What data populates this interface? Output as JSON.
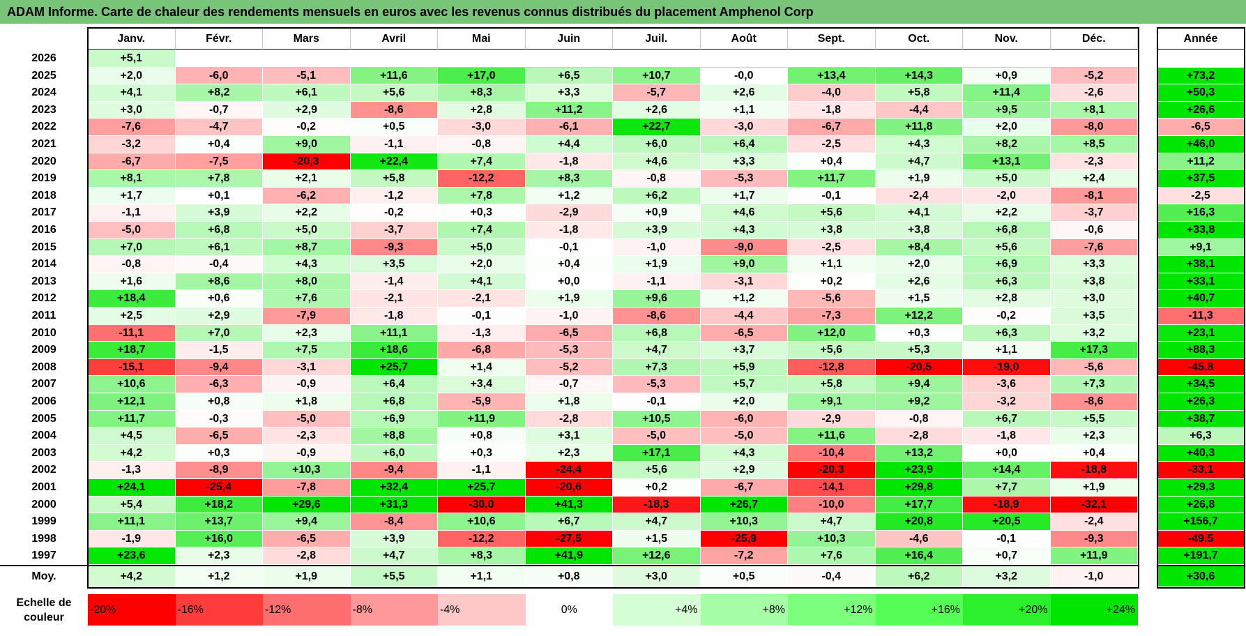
{
  "title": "ADAM Informe. Carte de chaleur des rendements mensuels en euros avec les revenus connus distribués du placement Amphenol Corp",
  "chart_data": {
    "type": "heatmap",
    "columns": [
      "Janv.",
      "Févr.",
      "Mars",
      "Avril",
      "Mai",
      "Juin",
      "Juil.",
      "Août",
      "Sept.",
      "Oct.",
      "Nov.",
      "Déc."
    ],
    "year_column": "Année",
    "rows": [
      {
        "year": "2026",
        "values": [
          "+5,1",
          "",
          "",
          "",
          "",
          "",
          "",
          "",
          "",
          "",
          "",
          ""
        ],
        "annual": ""
      },
      {
        "year": "2025",
        "values": [
          "+2,0",
          "-6,0",
          "-5,1",
          "+11,6",
          "+17,0",
          "+6,5",
          "+10,7",
          "-0,0",
          "+13,4",
          "+14,3",
          "+0,9",
          "-5,2"
        ],
        "annual": "+73,2"
      },
      {
        "year": "2024",
        "values": [
          "+4,1",
          "+8,2",
          "+6,1",
          "+5,6",
          "+8,3",
          "+3,3",
          "-5,7",
          "+2,6",
          "-4,0",
          "+5,8",
          "+11,4",
          "-2,6"
        ],
        "annual": "+50,3"
      },
      {
        "year": "2023",
        "values": [
          "+3,0",
          "-0,7",
          "+2,9",
          "-8,6",
          "+2,8",
          "+11,2",
          "+2,6",
          "+1,1",
          "-1,8",
          "-4,4",
          "+9,5",
          "+8,1"
        ],
        "annual": "+26,6"
      },
      {
        "year": "2022",
        "values": [
          "-7,6",
          "-4,7",
          "-0,2",
          "+0,5",
          "-3,0",
          "-6,1",
          "+22,7",
          "-3,0",
          "-6,7",
          "+11,8",
          "+2,0",
          "-8,0"
        ],
        "annual": "-6,5"
      },
      {
        "year": "2021",
        "values": [
          "-3,2",
          "+0,4",
          "+9,0",
          "-1,1",
          "-0,8",
          "+4,4",
          "+6,0",
          "+6,4",
          "-2,5",
          "+4,3",
          "+8,2",
          "+8,5"
        ],
        "annual": "+46,0"
      },
      {
        "year": "2020",
        "values": [
          "-6,7",
          "-7,5",
          "-20,3",
          "+22,4",
          "+7,4",
          "-1,8",
          "+4,6",
          "+3,3",
          "+0,4",
          "+4,7",
          "+13,1",
          "-2,3"
        ],
        "annual": "+11,2"
      },
      {
        "year": "2019",
        "values": [
          "+8,1",
          "+7,8",
          "+2,1",
          "+5,8",
          "-12,2",
          "+8,3",
          "-0,8",
          "-5,3",
          "+11,7",
          "+1,9",
          "+5,0",
          "+2,4"
        ],
        "annual": "+37,5"
      },
      {
        "year": "2018",
        "values": [
          "+1,7",
          "+0,1",
          "-6,2",
          "-1,2",
          "+7,8",
          "+1,2",
          "+6,2",
          "+1,7",
          "-0,1",
          "-2,4",
          "-2,0",
          "-8,1"
        ],
        "annual": "-2,5"
      },
      {
        "year": "2017",
        "values": [
          "-1,1",
          "+3,9",
          "+2,2",
          "-0,2",
          "+0,3",
          "-2,9",
          "+0,9",
          "+4,6",
          "+5,6",
          "+4,1",
          "+2,2",
          "-3,7"
        ],
        "annual": "+16,3"
      },
      {
        "year": "2016",
        "values": [
          "-5,0",
          "+6,8",
          "+5,0",
          "-3,7",
          "+7,4",
          "-1,8",
          "+3,9",
          "+4,3",
          "+3,8",
          "+3,8",
          "+6,8",
          "-0,6"
        ],
        "annual": "+33,8"
      },
      {
        "year": "2015",
        "values": [
          "+7,0",
          "+6,1",
          "+8,7",
          "-9,3",
          "+5,0",
          "-0,1",
          "-1,0",
          "-9,0",
          "-2,5",
          "+8,4",
          "+5,6",
          "-7,6"
        ],
        "annual": "+9,1"
      },
      {
        "year": "2014",
        "values": [
          "-0,8",
          "-0,4",
          "+4,3",
          "+3,5",
          "+2,0",
          "+0,4",
          "+1,9",
          "+9,0",
          "+1,1",
          "+2,0",
          "+6,9",
          "+3,3"
        ],
        "annual": "+38,1"
      },
      {
        "year": "2013",
        "values": [
          "+1,6",
          "+8,6",
          "+8,0",
          "-1,4",
          "+4,1",
          "+0,0",
          "-1,1",
          "-3,1",
          "+0,2",
          "+2,6",
          "+6,3",
          "+3,8"
        ],
        "annual": "+33,1"
      },
      {
        "year": "2012",
        "values": [
          "+18,4",
          "+0,6",
          "+7,6",
          "-2,1",
          "-2,1",
          "+1,9",
          "+9,6",
          "+1,2",
          "-5,6",
          "+1,5",
          "+2,8",
          "+3,0"
        ],
        "annual": "+40,7"
      },
      {
        "year": "2011",
        "values": [
          "+2,5",
          "+2,9",
          "-7,9",
          "-1,8",
          "-0,1",
          "-1,0",
          "-8,6",
          "-4,4",
          "-7,3",
          "+12,2",
          "-0,2",
          "+3,5"
        ],
        "annual": "-11,3"
      },
      {
        "year": "2010",
        "values": [
          "-11,1",
          "+7,0",
          "+2,3",
          "+11,1",
          "-1,3",
          "-6,5",
          "+6,8",
          "-6,5",
          "+12,0",
          "+0,3",
          "+6,3",
          "+3,2"
        ],
        "annual": "+23,1"
      },
      {
        "year": "2009",
        "values": [
          "+18,7",
          "-1,5",
          "+7,5",
          "+18,6",
          "-6,8",
          "-5,3",
          "+4,7",
          "+3,7",
          "+5,6",
          "+5,3",
          "+1,1",
          "+17,3"
        ],
        "annual": "+88,3"
      },
      {
        "year": "2008",
        "values": [
          "-15,1",
          "-9,4",
          "-3,1",
          "+25,7",
          "+1,4",
          "-5,2",
          "+7,3",
          "+5,9",
          "-12,8",
          "-20,5",
          "-19,0",
          "-5,6"
        ],
        "annual": "-45,8"
      },
      {
        "year": "2007",
        "values": [
          "+10,6",
          "-6,3",
          "-0,9",
          "+6,4",
          "+3,4",
          "-0,7",
          "-5,3",
          "+5,7",
          "+5,8",
          "+9,4",
          "-3,6",
          "+7,3"
        ],
        "annual": "+34,5"
      },
      {
        "year": "2006",
        "values": [
          "+12,1",
          "+0,8",
          "+1,8",
          "+6,8",
          "-5,9",
          "+1,8",
          "-0,1",
          "+2,0",
          "+9,1",
          "+9,2",
          "-3,2",
          "-8,6"
        ],
        "annual": "+26,3"
      },
      {
        "year": "2005",
        "values": [
          "+11,7",
          "-0,3",
          "-5,0",
          "+6,9",
          "+11,9",
          "-2,8",
          "+10,5",
          "-6,0",
          "-2,9",
          "-0,8",
          "+6,7",
          "+5,5"
        ],
        "annual": "+38,7"
      },
      {
        "year": "2004",
        "values": [
          "+4,5",
          "-6,5",
          "-2,3",
          "+8,8",
          "+0,8",
          "+3,1",
          "-5,0",
          "-5,0",
          "+11,6",
          "-2,8",
          "-1,8",
          "+2,3"
        ],
        "annual": "+6,3"
      },
      {
        "year": "2003",
        "values": [
          "+4,2",
          "+0,3",
          "-0,9",
          "+6,0",
          "+0,3",
          "+2,3",
          "+17,1",
          "+4,3",
          "-10,4",
          "+13,2",
          "+0,0",
          "+0,4"
        ],
        "annual": "+40,3"
      },
      {
        "year": "2002",
        "values": [
          "-1,3",
          "-8,9",
          "+10,3",
          "-9,4",
          "-1,1",
          "-24,4",
          "+5,6",
          "+2,9",
          "-20,3",
          "+23,9",
          "+14,4",
          "-18,8"
        ],
        "annual": "-33,1"
      },
      {
        "year": "2001",
        "values": [
          "+24,1",
          "-25,4",
          "-7,8",
          "+32,4",
          "+25,7",
          "-20,6",
          "+0,2",
          "-6,7",
          "-14,1",
          "+29,8",
          "+7,7",
          "+1,9"
        ],
        "annual": "+29,3"
      },
      {
        "year": "2000",
        "values": [
          "+5,4",
          "+18,2",
          "+29,6",
          "+31,3",
          "-30,0",
          "+41,3",
          "-18,3",
          "+26,7",
          "-10,0",
          "+17,7",
          "-18,9",
          "-32,1"
        ],
        "annual": "+26,8"
      },
      {
        "year": "1999",
        "values": [
          "+11,1",
          "+13,7",
          "+9,4",
          "-8,4",
          "+10,6",
          "+6,7",
          "+4,7",
          "+10,3",
          "+4,7",
          "+20,8",
          "+20,5",
          "-2,4"
        ],
        "annual": "+156,7"
      },
      {
        "year": "1998",
        "values": [
          "-1,9",
          "+16,0",
          "-6,5",
          "+3,9",
          "-12,2",
          "-27,5",
          "+1,5",
          "-25,9",
          "+10,3",
          "-4,6",
          "-0,1",
          "-9,3"
        ],
        "annual": "-49,5"
      },
      {
        "year": "1997",
        "values": [
          "+23,6",
          "+2,3",
          "-2,8",
          "+4,7",
          "+8,3",
          "+41,9",
          "+12,6",
          "-7,2",
          "+7,6",
          "+16,4",
          "+0,7",
          "+11,9"
        ],
        "annual": "+191,7"
      }
    ],
    "average": {
      "label": "Moy.",
      "values": [
        "+4,2",
        "+1,2",
        "+1,9",
        "+5,5",
        "+1,1",
        "+0,8",
        "+3,0",
        "+0,5",
        "-0,4",
        "+6,2",
        "+3,2",
        "-1,0"
      ],
      "annual": "+30,6"
    },
    "scale": {
      "label_line1": "Echelle de",
      "label_line2": "couleur",
      "items": [
        {
          "label": "-20%",
          "value": -20,
          "color": "#ff0000"
        },
        {
          "label": "-16%",
          "value": -16,
          "color": "#ff3c3c"
        },
        {
          "label": "-12%",
          "value": -12,
          "color": "#ff6e6e"
        },
        {
          "label": "-8%",
          "value": -8,
          "color": "#ff9999"
        },
        {
          "label": "-4%",
          "value": -4,
          "color": "#ffc8c8"
        },
        {
          "label": "0%",
          "value": 0,
          "color": "#ffffff"
        },
        {
          "label": "+4%",
          "value": 4,
          "color": "#d4ffd4"
        },
        {
          "label": "+8%",
          "value": 8,
          "color": "#a6ffa6"
        },
        {
          "label": "+12%",
          "value": 12,
          "color": "#7cff7c"
        },
        {
          "label": "+16%",
          "value": 16,
          "color": "#55ff55"
        },
        {
          "label": "+20%",
          "value": 20,
          "color": "#2cf02c"
        },
        {
          "label": "+24%",
          "value": 24,
          "color": "#00e600"
        }
      ]
    }
  }
}
